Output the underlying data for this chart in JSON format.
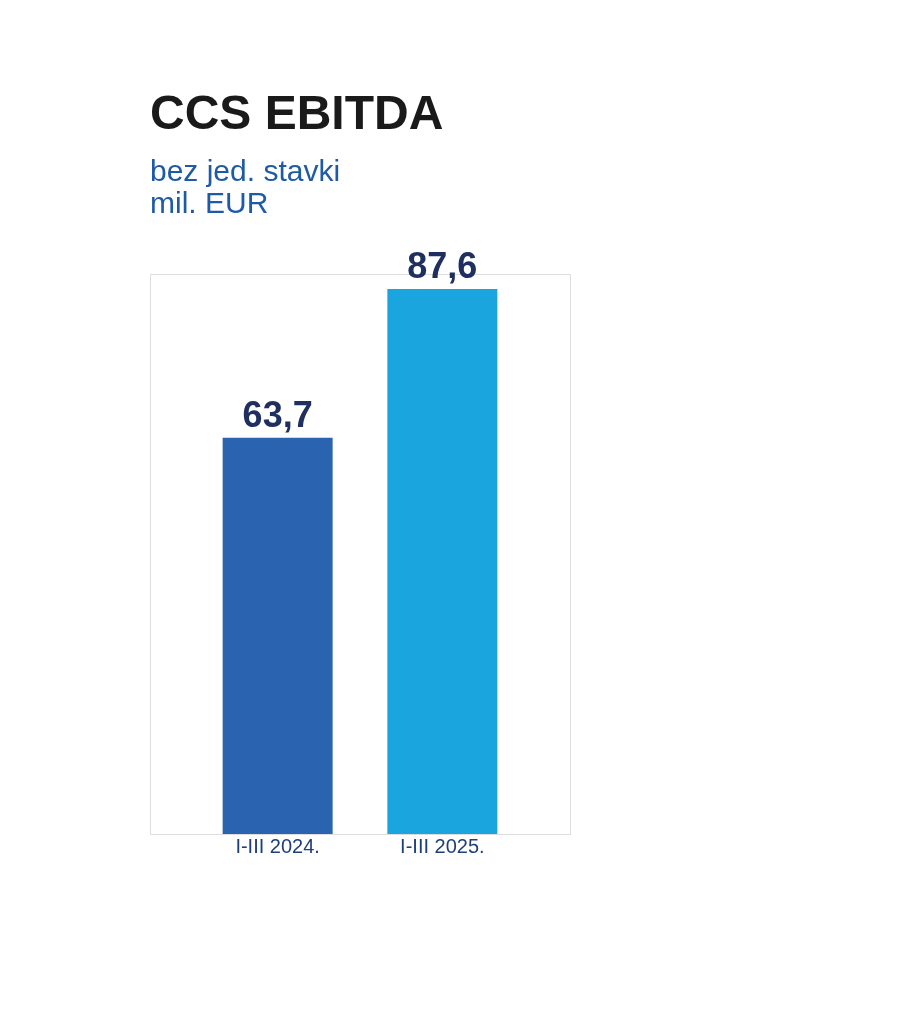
{
  "chart_data": {
    "type": "bar",
    "title": "CCS EBITDA",
    "subtitle": "bez jed. stavki",
    "ylabel": "mil. EUR",
    "categories": [
      "I-III 2024.",
      "I-III 2025."
    ],
    "values": [
      63.7,
      87.6
    ],
    "value_labels": [
      "63,7",
      "87,6"
    ],
    "colors": [
      "#2a64b0",
      "#1aa5de"
    ]
  }
}
